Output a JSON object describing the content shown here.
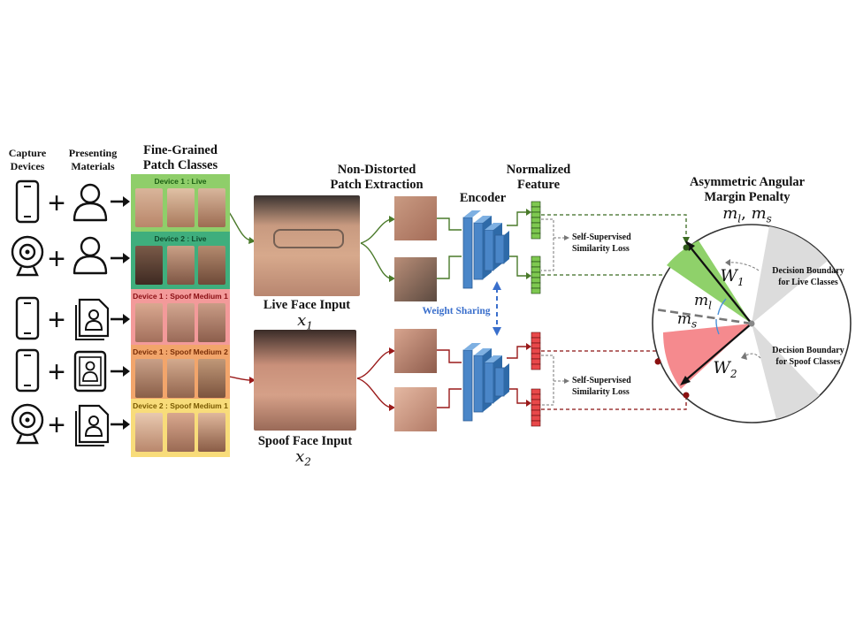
{
  "headers": {
    "capture_devices": [
      "Capture",
      "Devices"
    ],
    "presenting_materials": [
      "Presenting",
      "Materials"
    ],
    "patch_classes": [
      "Fine-Grained",
      "Patch Classes"
    ],
    "patch_extraction": [
      "Non-Distorted",
      "Patch Extraction"
    ],
    "encoder": "Encoder",
    "normalized_feature": [
      "Normalized",
      "Feature"
    ],
    "margin_penalty": [
      "Asymmetric Angular",
      "Margin Penalty"
    ]
  },
  "margin_symbols": {
    "ml": "m",
    "ml_sub": "l",
    "ms": "m",
    "ms_sub": "s",
    "sep": ", "
  },
  "class_boxes": [
    {
      "label": "Device 1 : Live",
      "color": "#8fce6a",
      "text_color": "#1a5e12"
    },
    {
      "label": "Device 2 : Live",
      "color": "#3fae7d",
      "text_color": "#0f4a2c"
    },
    {
      "label": "Device 1 : Spoof Medium 1",
      "color": "#f39a9a",
      "text_color": "#8a0f14"
    },
    {
      "label": "Device 1 : Spoof Medium 2",
      "color": "#f2a56b",
      "text_color": "#7a2e06"
    },
    {
      "label": "Device 2 : Spoof Medium 1",
      "color": "#f8dc7a",
      "text_color": "#7a5a00"
    }
  ],
  "rows": [
    {
      "device": "phone-icon",
      "material": "person-icon"
    },
    {
      "device": "webcam-icon",
      "material": "person-icon"
    },
    {
      "device": "phone-icon",
      "material": "printed-photo-icon"
    },
    {
      "device": "phone-icon",
      "material": "tablet-icon"
    },
    {
      "device": "webcam-icon",
      "material": "printed-photo-icon"
    }
  ],
  "inputs": {
    "live_label": "Live Face Input",
    "live_var": "x",
    "live_sub": "1",
    "spoof_label": "Spoof Face Input",
    "spoof_var": "x",
    "spoof_sub": "2"
  },
  "weight_sharing": "Weight Sharing",
  "similarity_loss": [
    "Self-Supervised",
    "Similarity Loss"
  ],
  "decision_live": [
    "Decision Boundary",
    "for Live Classes"
  ],
  "decision_spoof": [
    "Decision Boundary",
    "for Spoof Classes"
  ],
  "weights": {
    "w1": "W",
    "w1_sub": "1",
    "w2": "W",
    "w2_sub": "2"
  },
  "colors": {
    "live_feature": "#7ec850",
    "spoof_feature": "#e8484a",
    "encoder": "#4a86c8",
    "live_arrow": "#4a7a2a",
    "spoof_arrow": "#9a1a1a",
    "weight_sharing": "#3a6fcc",
    "live_sector": "#8fd16a",
    "spoof_sector": "#f58a8e",
    "boundary_sector": "#dcdcdc"
  }
}
